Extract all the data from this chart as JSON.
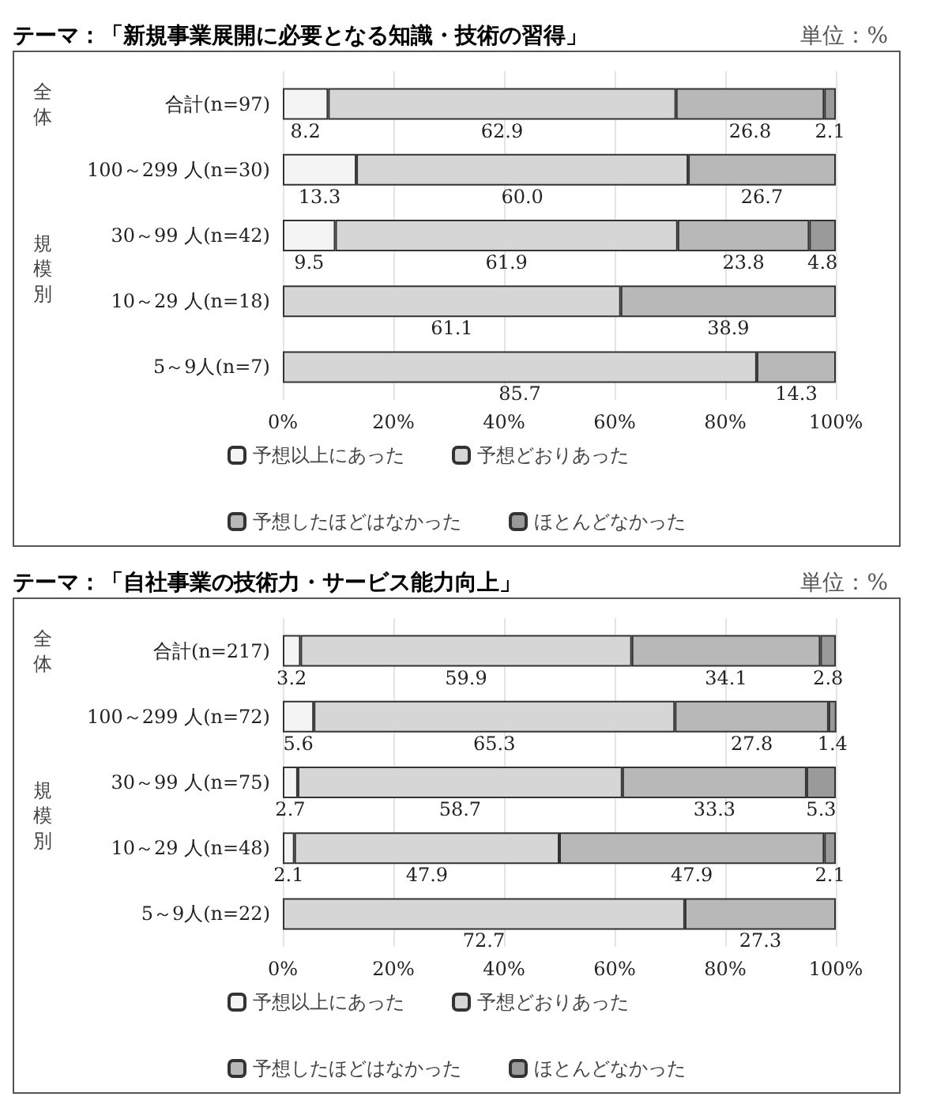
{
  "chart_data": [
    {
      "type": "bar",
      "orientation": "horizontal",
      "stacked": true,
      "title": "テーマ：「新規事業展開に必要となる知識・技術の習得」",
      "annotations": [
        "単位：%",
        "全体",
        "規模別"
      ],
      "categories": [
        "合計(n=97)",
        "100～299 人(n=30)",
        "30～99 人(n=42)",
        "10～29 人(n=18)",
        "5～9人(n=7)"
      ],
      "xlim": [
        0,
        100
      ],
      "xticks": [
        {
          "value": 0,
          "label": "0%"
        },
        {
          "value": 20,
          "label": "20%"
        },
        {
          "value": 40,
          "label": "40%"
        },
        {
          "value": 60,
          "label": "60%"
        },
        {
          "value": 80,
          "label": "80%"
        },
        {
          "value": 100,
          "label": "100%"
        }
      ],
      "grid": "x",
      "legend": "bottom",
      "series": [
        {
          "name": "予想以上にあった",
          "color": "#f4f4f4",
          "values": [
            8.2,
            13.3,
            9.5,
            null,
            null
          ],
          "value_labels": [
            "8.2",
            "13.3",
            "9.5",
            null,
            null
          ]
        },
        {
          "name": "予想どおりあった",
          "color": "#d6d6d6",
          "values": [
            62.9,
            60.0,
            61.9,
            61.1,
            85.7
          ],
          "value_labels": [
            "62.9",
            "60.0",
            "61.9",
            "61.1",
            "85.7"
          ]
        },
        {
          "name": "予想したほどはなかった",
          "color": "#b8b8b8",
          "values": [
            26.8,
            26.7,
            23.8,
            38.9,
            14.3
          ],
          "value_labels": [
            "26.8",
            "26.7",
            "23.8",
            "38.9",
            "14.3"
          ]
        },
        {
          "name": "ほとんどなかった",
          "color": "#9a9a9a",
          "values": [
            2.1,
            null,
            4.8,
            null,
            null
          ],
          "value_labels": [
            "2.1",
            null,
            "4.8",
            null,
            null
          ]
        }
      ]
    },
    {
      "type": "bar",
      "orientation": "horizontal",
      "stacked": true,
      "title": "テーマ：「自社事業の技術力・サービス能力向上」",
      "annotations": [
        "単位：%",
        "全体",
        "規模別"
      ],
      "categories": [
        "合計(n=217)",
        "100～299 人(n=72)",
        "30～99 人(n=75)",
        "10～29 人(n=48)",
        "5～9人(n=22)"
      ],
      "xlim": [
        0,
        100
      ],
      "xticks": [
        {
          "value": 0,
          "label": "0%"
        },
        {
          "value": 20,
          "label": "20%"
        },
        {
          "value": 40,
          "label": "40%"
        },
        {
          "value": 60,
          "label": "60%"
        },
        {
          "value": 80,
          "label": "80%"
        },
        {
          "value": 100,
          "label": "100%"
        }
      ],
      "grid": "x",
      "legend": "bottom",
      "series": [
        {
          "name": "予想以上にあった",
          "color": "#f4f4f4",
          "values": [
            3.2,
            5.6,
            2.7,
            2.1,
            null
          ],
          "value_labels": [
            "3.2",
            "5.6",
            "2.7",
            "2.1",
            null
          ]
        },
        {
          "name": "予想どおりあった",
          "color": "#d6d6d6",
          "values": [
            59.9,
            65.3,
            58.7,
            47.9,
            72.7
          ],
          "value_labels": [
            "59.9",
            "65.3",
            "58.7",
            "47.9",
            "72.7"
          ]
        },
        {
          "name": "予想したほどはなかった",
          "color": "#b8b8b8",
          "values": [
            34.1,
            27.8,
            33.3,
            47.9,
            27.3
          ],
          "value_labels": [
            "34.1",
            "27.8",
            "33.3",
            "47.9",
            "27.3"
          ]
        },
        {
          "name": "ほとんどなかった",
          "color": "#9a9a9a",
          "values": [
            2.8,
            1.4,
            5.3,
            2.1,
            null
          ],
          "value_labels": [
            "2.8",
            "1.4",
            "5.3",
            "2.1",
            null
          ]
        }
      ]
    }
  ]
}
